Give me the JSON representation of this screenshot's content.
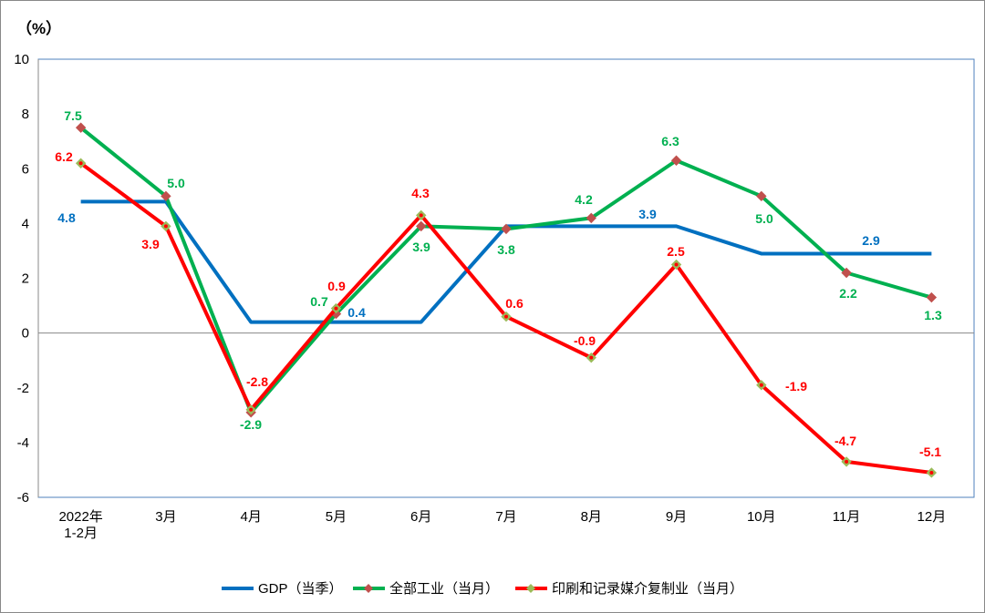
{
  "chart_data": {
    "type": "line",
    "unit_label": "（%）",
    "ylim": [
      -6,
      10
    ],
    "yticks": [
      -6,
      -4,
      -2,
      0,
      2,
      4,
      6,
      8,
      10
    ],
    "categories": [
      [
        "2022年",
        "1-2月"
      ],
      [
        "3月"
      ],
      [
        "4月"
      ],
      [
        "5月"
      ],
      [
        "6月"
      ],
      [
        "7月"
      ],
      [
        "8月"
      ],
      [
        "9月"
      ],
      [
        "10月"
      ],
      [
        "11月"
      ],
      [
        "12月"
      ]
    ],
    "grid": false,
    "legend_position": "bottom",
    "series": [
      {
        "name": "GDP（当季）",
        "color": "#0070C0",
        "marker": "none",
        "values": [
          4.8,
          4.8,
          0.4,
          0.4,
          0.4,
          3.9,
          3.9,
          3.9,
          2.9,
          2.9,
          2.9
        ],
        "labels": [
          "4.8",
          null,
          null,
          "0.4",
          null,
          null,
          null,
          "3.9",
          null,
          "2.9",
          null
        ]
      },
      {
        "name": "全部工业（当月）",
        "color": "#00B050",
        "marker": "diamond",
        "marker_color": "#C0504D",
        "values": [
          7.5,
          5.0,
          -2.9,
          0.7,
          3.9,
          3.8,
          4.2,
          6.3,
          5.0,
          2.2,
          1.3
        ],
        "labels": [
          "7.5",
          "5.0",
          "-2.9",
          "0.7",
          "3.9",
          "3.8",
          "4.2",
          "6.3",
          "5.0",
          "2.2",
          "1.3"
        ]
      },
      {
        "name": "印刷和记录媒介复制业（当月）",
        "color": "#FF0000",
        "marker": "diamond",
        "marker_color": "#9BBB59",
        "values": [
          6.2,
          3.9,
          -2.8,
          0.9,
          4.3,
          0.6,
          -0.9,
          2.5,
          -1.9,
          -4.7,
          -5.1
        ],
        "labels": [
          "6.2",
          "3.9",
          "-2.8",
          "0.9",
          "4.3",
          "0.6",
          "-0.9",
          "2.5",
          "-1.9",
          "-4.7",
          "-5.1"
        ]
      }
    ]
  }
}
